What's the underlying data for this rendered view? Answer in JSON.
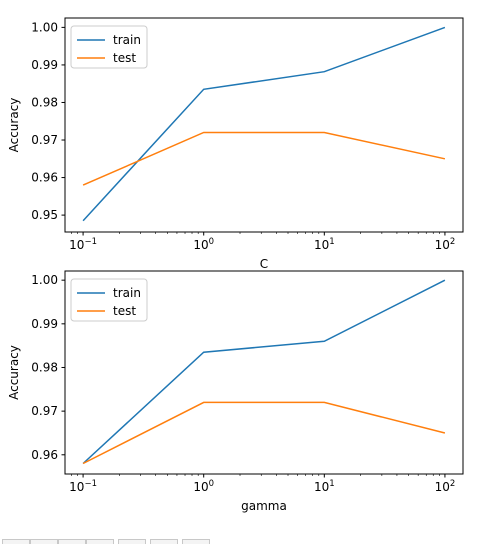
{
  "chart_data": [
    {
      "type": "line",
      "xlabel": "C",
      "ylabel": "Accuracy",
      "x": [
        0.1,
        1,
        10,
        100
      ],
      "xscale": "log",
      "xlim": [
        0.0708,
        141.2
      ],
      "ylim": [
        0.9455,
        1.0025
      ],
      "yticks": [
        0.95,
        0.96,
        0.97,
        0.98,
        0.99,
        1.0
      ],
      "ytick_labels": [
        "0.95",
        "0.96",
        "0.97",
        "0.98",
        "0.99",
        "1.00"
      ],
      "grid": false,
      "legend": "upper-left",
      "series": [
        {
          "name": "train",
          "color": "#1f77b4",
          "values": [
            0.9485,
            0.9835,
            0.9882,
            1.0
          ]
        },
        {
          "name": "test",
          "color": "#ff7f0e",
          "values": [
            0.958,
            0.972,
            0.972,
            0.965
          ]
        }
      ]
    },
    {
      "type": "line",
      "xlabel": "gamma",
      "ylabel": "Accuracy",
      "x": [
        0.1,
        1,
        10,
        100
      ],
      "xscale": "log",
      "xlim": [
        0.0708,
        141.2
      ],
      "ylim": [
        0.9556,
        1.0021
      ],
      "yticks": [
        0.96,
        0.97,
        0.98,
        0.99,
        1.0
      ],
      "ytick_labels": [
        "0.96",
        "0.97",
        "0.98",
        "0.99",
        "1.00"
      ],
      "grid": false,
      "legend": "upper-left",
      "series": [
        {
          "name": "train",
          "color": "#1f77b4",
          "values": [
            0.958,
            0.9835,
            0.986,
            1.0
          ]
        },
        {
          "name": "test",
          "color": "#ff7f0e",
          "values": [
            0.958,
            0.972,
            0.972,
            0.965
          ]
        }
      ]
    }
  ]
}
